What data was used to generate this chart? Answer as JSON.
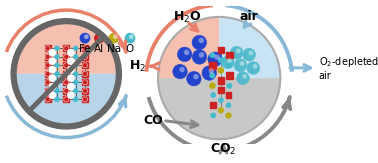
{
  "bg_color": "#ffffff",
  "legend_items": [
    {
      "label": "Fe",
      "color": "#2244cc"
    },
    {
      "label": "Al",
      "color": "#cc2222"
    },
    {
      "label": "Na",
      "color": "#bbaa00"
    },
    {
      "label": "O",
      "color": "#44bbcc"
    }
  ],
  "left_circle_bg_top": "#f5c0b0",
  "left_circle_bg_bot": "#b8d4e8",
  "right_circle_top_left_bg": "#f5c0b0",
  "right_circle_top_right_bg": "#c8e4f4",
  "right_circle_bot_bg": "#c8c8c8",
  "arrow_color_red": "#e8806a",
  "arrow_color_blue": "#88b8d8",
  "arrow_color_gray": "#888888",
  "fe_color": "#2244cc",
  "al_color": "#cc2222",
  "na_color": "#bbaa00",
  "o_color": "#44bbcc",
  "cyan_sphere_color": "#55bbcc",
  "cross_color": "#666666",
  "text_H2O": "H$_2$O",
  "text_H2": "H$_2$",
  "text_air": "air",
  "text_O2dep": "O$_2$-depleted\nair",
  "text_CO": "CO",
  "text_CO2": "CO$_2$"
}
